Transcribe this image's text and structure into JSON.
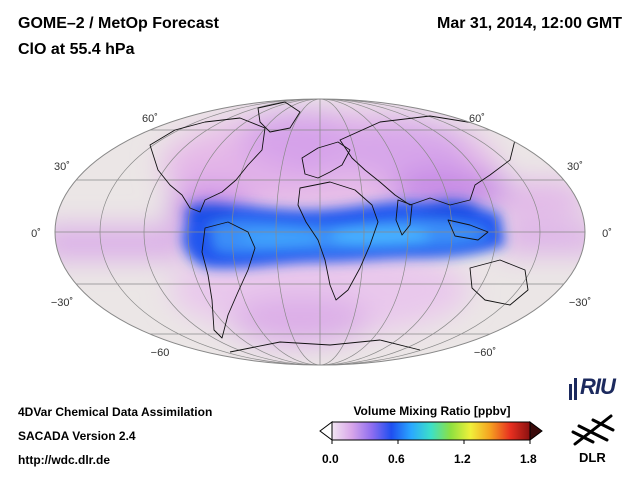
{
  "header": {
    "title_line1": "GOME–2 / MetOp Forecast",
    "title_line2": "ClO at 55.4 hPa",
    "timestamp": "Mar 31, 2014, 12:00 GMT"
  },
  "map": {
    "projection": "mollweide",
    "lat_labels_left": [
      "60˚",
      "30˚",
      "0˚",
      "−30˚",
      "−60"
    ],
    "lat_labels_right": [
      "60˚",
      "30˚",
      "0˚",
      "−30˚",
      "−60˚"
    ],
    "colors": {
      "background": "#e8e3e3",
      "graticule": "#888888",
      "coastline": "#111111",
      "low_pink": "#e6b6e6",
      "mid_violet": "#c88ae6",
      "band_blue": "#1f5cf0",
      "band_cyan": "#3aa6ff"
    }
  },
  "footer": {
    "line1": "4DVar Chemical Data Assimilation",
    "line2": "SACADA Version 2.4",
    "line3": "http://wdc.dlr.de"
  },
  "colorbar": {
    "title": "Volume Mixing Ratio [ppbv]",
    "ticks": [
      "0.0",
      "0.6",
      "1.2",
      "1.8"
    ],
    "range": [
      0.0,
      1.8
    ]
  },
  "logos": {
    "riu": "RIU",
    "dlr": "DLR"
  }
}
